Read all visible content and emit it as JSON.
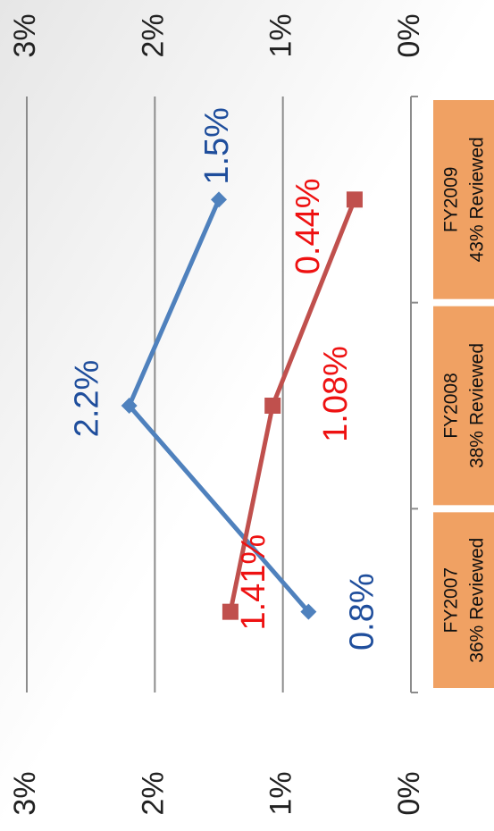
{
  "chart_data": {
    "type": "line",
    "categories": [
      "FY2007",
      "FY2008",
      "FY2009"
    ],
    "reviewed": [
      "36% Reviewed",
      "38% Reviewed",
      "43% Reviewed"
    ],
    "series": [
      {
        "name": null,
        "color": "#4f81bd",
        "label_color": "#1f4e9c",
        "marker": "diamond",
        "values": [
          0.8,
          2.2,
          1.5
        ],
        "value_labels": [
          "0.8%",
          "2.2%",
          "1.5%"
        ]
      },
      {
        "name": null,
        "color": "#c0504d",
        "label_color": "#ee1111",
        "marker": "square",
        "values": [
          1.41,
          1.08,
          0.44
        ],
        "value_labels": [
          "1.41%",
          "1.08%",
          "0.44%"
        ]
      }
    ],
    "ylim": [
      0,
      3
    ],
    "yticks": [
      {
        "value": 0,
        "label": "0%"
      },
      {
        "value": 1,
        "label": "1%"
      },
      {
        "value": 2,
        "label": "2%"
      },
      {
        "value": 3,
        "label": "3%"
      }
    ],
    "grid": true
  }
}
